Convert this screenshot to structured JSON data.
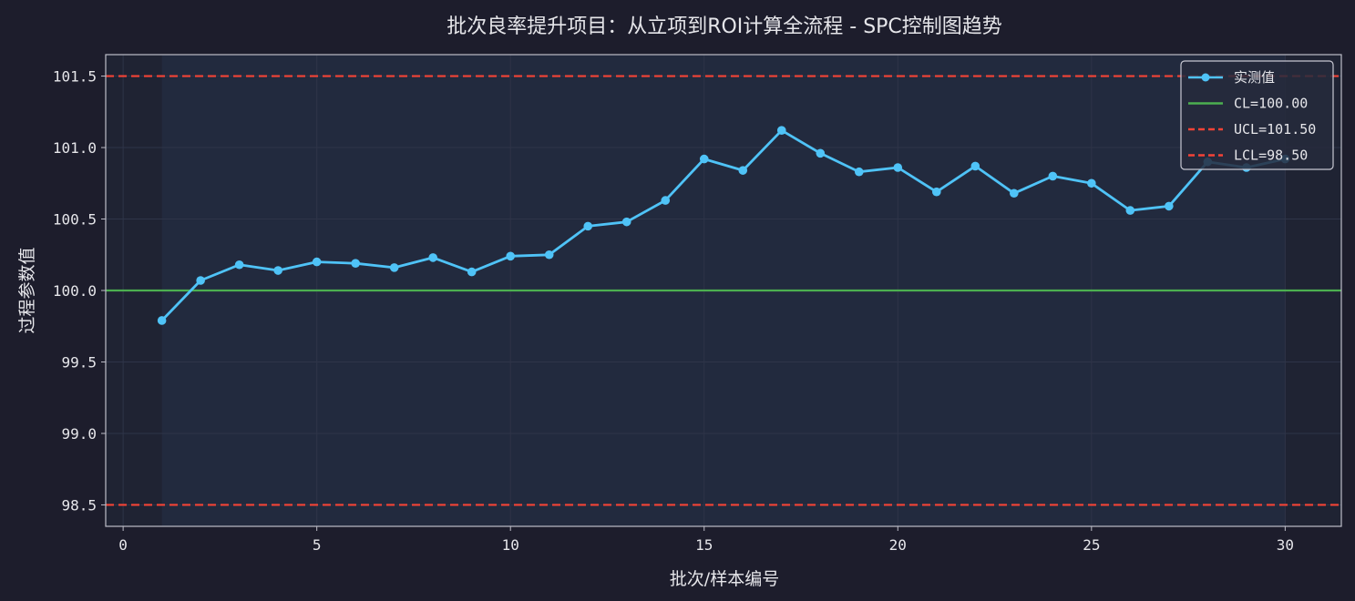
{
  "chart_data": {
    "type": "line",
    "title": "批次良率提升项目：从立项到ROI计算全流程 - SPC控制图趋势",
    "xlabel": "批次/样本编号",
    "ylabel": "过程参数值",
    "xlim": [
      -0.45,
      31.45
    ],
    "ylim": [
      98.35,
      101.65
    ],
    "xticks": [
      0,
      5,
      10,
      15,
      20,
      25,
      30
    ],
    "yticks": [
      98.5,
      99.0,
      99.5,
      100.0,
      100.5,
      101.0,
      101.5
    ],
    "ytick_labels": [
      "98.5",
      "99.0",
      "99.5",
      "100.0",
      "100.5",
      "101.0",
      "101.5"
    ],
    "grid": true,
    "legend_position": "top-right",
    "series": [
      {
        "name": "实测值",
        "color": "#4fc3f7",
        "x": [
          1,
          2,
          3,
          4,
          5,
          6,
          7,
          8,
          9,
          10,
          11,
          12,
          13,
          14,
          15,
          16,
          17,
          18,
          19,
          20,
          21,
          22,
          23,
          24,
          25,
          26,
          27,
          28,
          29,
          30
        ],
        "values": [
          99.79,
          100.07,
          100.18,
          100.14,
          100.2,
          100.19,
          100.16,
          100.23,
          100.13,
          100.24,
          100.25,
          100.45,
          100.48,
          100.63,
          100.92,
          100.84,
          101.12,
          100.96,
          100.83,
          100.86,
          100.69,
          100.87,
          100.68,
          100.8,
          100.75,
          100.56,
          100.59,
          100.9,
          100.86,
          100.92
        ]
      }
    ],
    "reference_lines": [
      {
        "name": "CL=100.00",
        "value": 100.0,
        "color": "#4caf50",
        "style": "solid"
      },
      {
        "name": "UCL=101.50",
        "value": 101.5,
        "color": "#f44336",
        "style": "dashed"
      },
      {
        "name": "LCL=98.50",
        "value": 98.5,
        "color": "#f44336",
        "style": "dashed"
      }
    ],
    "colors": {
      "background": "#1d1d2c",
      "plot_background": "#1f2333",
      "band": "#222a3e",
      "axis": "#bdbdc8",
      "grid": "#2e3448"
    }
  }
}
